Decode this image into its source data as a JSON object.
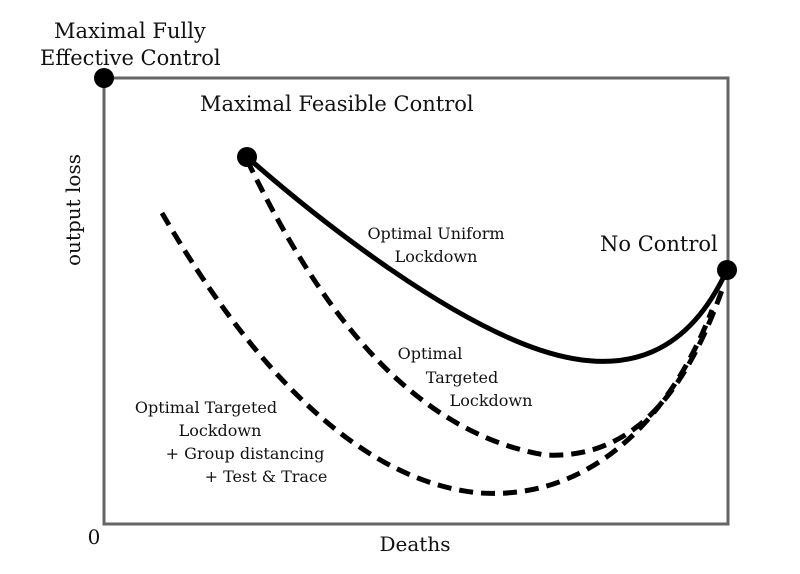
{
  "axes": {
    "xlabel": "Deaths",
    "ylabel": "output loss",
    "origin": "0"
  },
  "points": {
    "maximal_fully_effective": [
      "Maximal Fully",
      "Effective Control"
    ],
    "maximal_feasible": "Maximal Feasible Control",
    "no_control": "No Control"
  },
  "curves": {
    "uniform": [
      "Optimal Uniform",
      "Lockdown"
    ],
    "targeted": [
      "Optimal",
      "Targeted",
      "Lockdown"
    ],
    "targeted_plus": [
      "Optimal Targeted",
      "Lockdown",
      "+ Group distancing",
      "+ Test & Trace"
    ]
  }
}
